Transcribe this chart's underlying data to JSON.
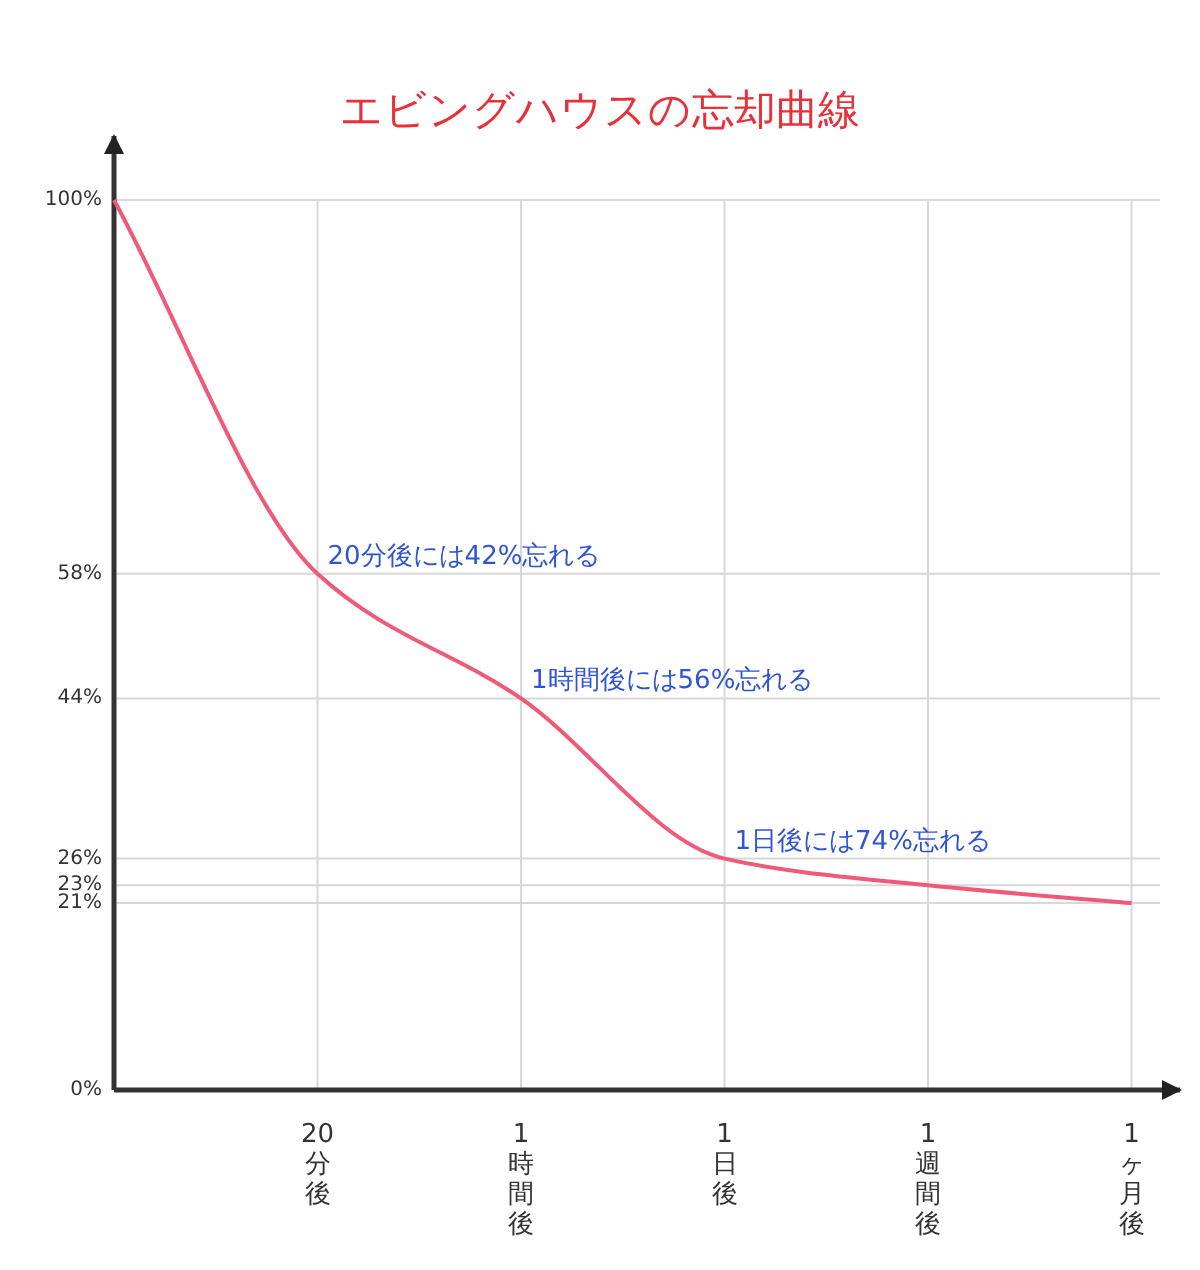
{
  "chart_data": {
    "type": "line",
    "title": "エビングハウスの忘却曲線",
    "categories": [
      null,
      "20分後",
      "1時間後",
      "1日後",
      "1週間後",
      "1ヶ月後"
    ],
    "series": [
      {
        "color": "#ee5a78",
        "values": [
          100,
          58,
          44,
          26,
          23,
          21
        ]
      }
    ],
    "ylim": [
      0,
      100
    ],
    "yticks": [
      {
        "value": 0,
        "label": "0%"
      },
      {
        "value": 21,
        "label": "21%"
      },
      {
        "value": 23,
        "label": "23%"
      },
      {
        "value": 26,
        "label": "26%"
      },
      {
        "value": 44,
        "label": "44%"
      },
      {
        "value": 58,
        "label": "58%"
      },
      {
        "value": 100,
        "label": "100%"
      }
    ],
    "grid": true,
    "marker": "none",
    "line_style": "solid",
    "annotations": [
      {
        "text": "20分後には42%忘れる",
        "x": "20分後",
        "y": 58
      },
      {
        "text": "1時間後には56%忘れる",
        "x": "1時間後",
        "y": 44
      },
      {
        "text": "1日後には74%忘れる",
        "x": "1日後",
        "y": 26
      }
    ]
  }
}
